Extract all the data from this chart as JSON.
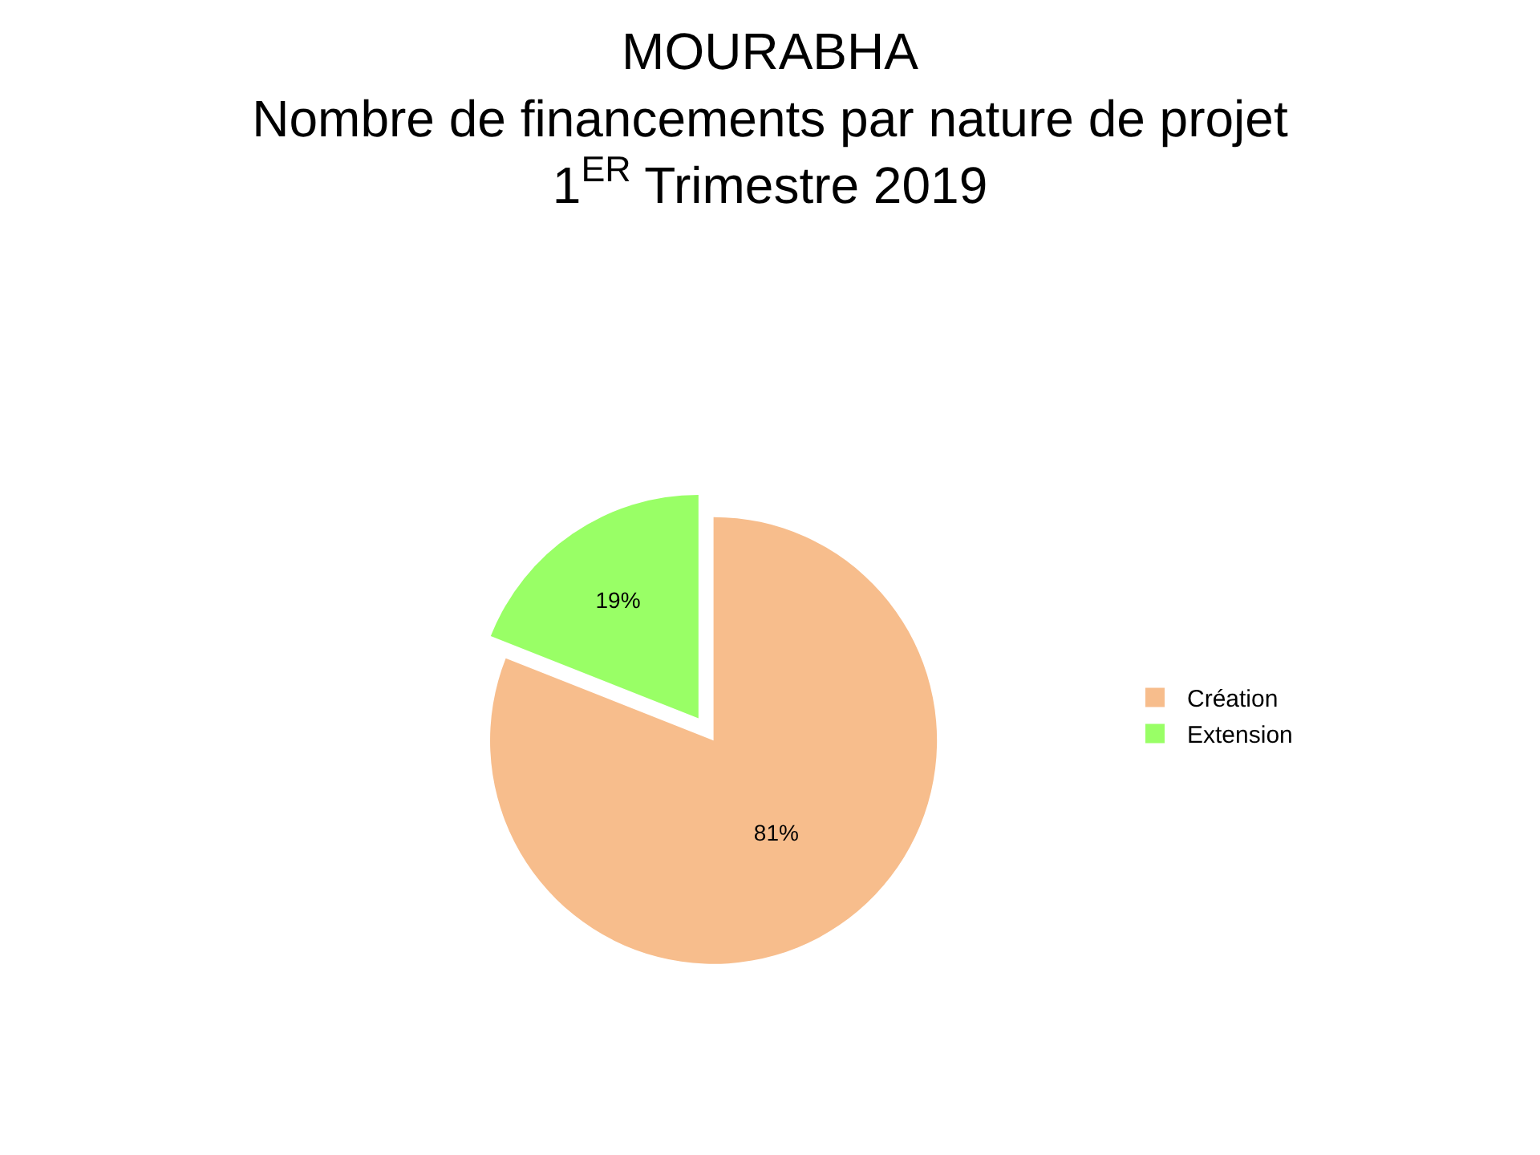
{
  "chart_data": {
    "type": "pie",
    "title": "MOURABHA\nNombre de financements par nature de projet\n1$^{ER}$ Trimestre 2019",
    "categories": [
      "Création",
      "Extension"
    ],
    "values": [
      81,
      19
    ],
    "value_labels": [
      "81%",
      "19%"
    ],
    "colors": [
      "#f7bd8c",
      "#99ff66"
    ],
    "legend": "right"
  }
}
